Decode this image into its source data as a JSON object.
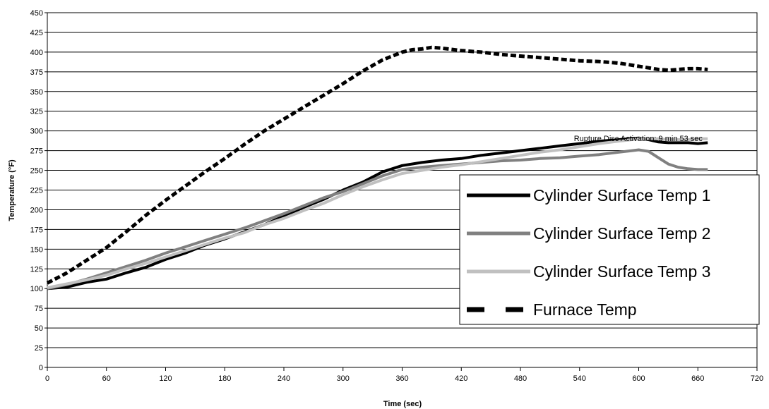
{
  "chart_data": {
    "type": "line",
    "xlabel": "Time (sec)",
    "ylabel": "Temperature (°F)",
    "xlim": [
      0,
      720
    ],
    "ylim": [
      0,
      450
    ],
    "x_ticks": [
      0,
      60,
      120,
      180,
      240,
      300,
      360,
      420,
      480,
      540,
      600,
      660,
      720
    ],
    "y_ticks": [
      0,
      25,
      50,
      75,
      100,
      125,
      150,
      175,
      200,
      225,
      250,
      275,
      300,
      325,
      350,
      375,
      400,
      425,
      450
    ],
    "grid": "horizontal",
    "legend_position": "bottom-right, inside plot",
    "annotation": {
      "text": "Rupture Disc Activation: 9 min 53 sec",
      "x": 593,
      "y": 297
    },
    "series": [
      {
        "name": "Cylinder Surface Temp 1",
        "color": "#000000",
        "style": "solid",
        "x": [
          0,
          20,
          40,
          60,
          80,
          100,
          120,
          140,
          160,
          180,
          200,
          220,
          240,
          260,
          280,
          300,
          320,
          340,
          360,
          380,
          400,
          420,
          440,
          460,
          480,
          500,
          520,
          540,
          560,
          580,
          600,
          610,
          620,
          630,
          640,
          650,
          660,
          670
        ],
        "y": [
          100,
          102,
          108,
          112,
          120,
          127,
          137,
          145,
          155,
          163,
          172,
          181,
          192,
          203,
          213,
          225,
          235,
          248,
          256,
          260,
          263,
          265,
          269,
          272,
          275,
          278,
          281,
          284,
          287,
          289,
          291,
          289,
          286,
          285,
          285,
          285,
          284,
          285
        ]
      },
      {
        "name": "Cylinder Surface Temp 2",
        "color": "#808080",
        "style": "solid",
        "x": [
          0,
          20,
          40,
          60,
          80,
          100,
          120,
          140,
          160,
          180,
          200,
          220,
          240,
          260,
          280,
          300,
          320,
          340,
          360,
          380,
          400,
          420,
          440,
          460,
          480,
          500,
          520,
          540,
          560,
          580,
          600,
          610,
          620,
          630,
          640,
          650,
          660,
          670
        ],
        "y": [
          100,
          105,
          112,
          120,
          128,
          136,
          145,
          153,
          161,
          169,
          177,
          186,
          195,
          205,
          215,
          223,
          233,
          243,
          251,
          254,
          256,
          258,
          260,
          262,
          263,
          265,
          266,
          268,
          270,
          273,
          276,
          274,
          266,
          258,
          254,
          252,
          251,
          251
        ]
      },
      {
        "name": "Cylinder Surface Temp 3",
        "color": "#c0c0c0",
        "style": "solid",
        "x": [
          0,
          20,
          40,
          60,
          80,
          100,
          120,
          140,
          160,
          180,
          200,
          220,
          240,
          260,
          280,
          300,
          320,
          340,
          360,
          380,
          400,
          420,
          440,
          460,
          480,
          500,
          520,
          540,
          560,
          580,
          600,
          610,
          620,
          630,
          640,
          650,
          660,
          670
        ],
        "y": [
          101,
          106,
          111,
          117,
          125,
          132,
          140,
          148,
          156,
          164,
          171,
          181,
          189,
          199,
          208,
          219,
          229,
          238,
          246,
          250,
          254,
          257,
          261,
          265,
          269,
          273,
          276,
          280,
          284,
          287,
          290,
          290,
          290,
          289,
          289,
          289,
          290,
          290
        ]
      },
      {
        "name": "Furnace Temp",
        "color": "#000000",
        "style": "dashed",
        "x": [
          0,
          20,
          40,
          60,
          80,
          100,
          120,
          140,
          160,
          180,
          200,
          220,
          240,
          260,
          280,
          300,
          320,
          340,
          360,
          370,
          380,
          390,
          400,
          420,
          440,
          460,
          480,
          500,
          520,
          540,
          560,
          580,
          600,
          610,
          620,
          630,
          640,
          650,
          660,
          670
        ],
        "y": [
          107,
          120,
          136,
          152,
          172,
          193,
          212,
          230,
          248,
          265,
          283,
          300,
          315,
          330,
          345,
          360,
          376,
          390,
          400,
          403,
          404,
          406,
          405,
          402,
          400,
          397,
          395,
          393,
          391,
          389,
          388,
          386,
          382,
          380,
          378,
          377,
          378,
          379,
          379,
          378
        ]
      }
    ]
  }
}
